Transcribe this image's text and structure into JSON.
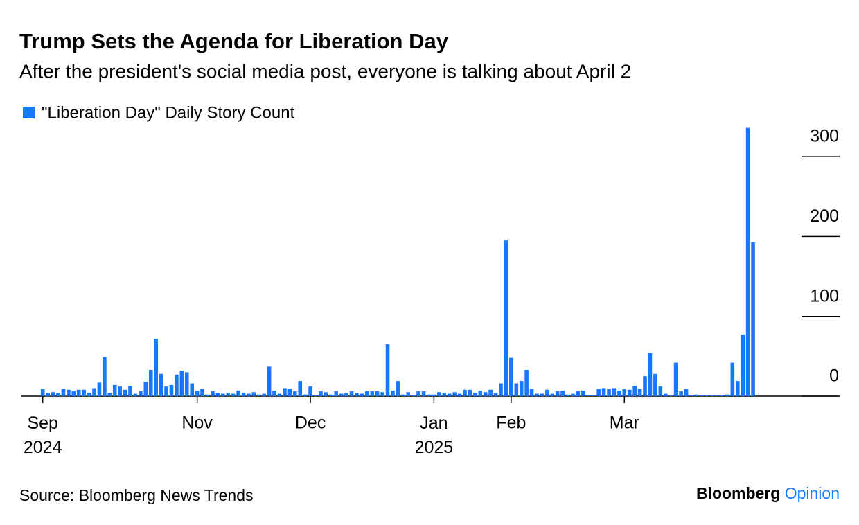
{
  "chart_data": {
    "type": "bar",
    "title": "Trump Sets the Agenda for Liberation Day",
    "subtitle": "After the president's social media post, everyone is talking about April 2",
    "source": "Source: Bloomberg News Trends",
    "brand": "Bloomberg",
    "brand_section": "Opinion",
    "series": [
      {
        "name": "\"Liberation Day\" Daily Story Count",
        "color": "#1677ff",
        "values": [
          9,
          4,
          5,
          4,
          9,
          8,
          6,
          8,
          8,
          4,
          10,
          17,
          49,
          4,
          14,
          12,
          8,
          13,
          3,
          6,
          18,
          33,
          72,
          28,
          12,
          14,
          27,
          32,
          30,
          16,
          7,
          9,
          2,
          6,
          4,
          3,
          4,
          3,
          7,
          4,
          3,
          5,
          2,
          3,
          37,
          7,
          3,
          10,
          9,
          6,
          19,
          2,
          12,
          1,
          6,
          5,
          2,
          6,
          3,
          4,
          6,
          4,
          3,
          6,
          6,
          6,
          5,
          65,
          7,
          19,
          2,
          5,
          1,
          6,
          6,
          2,
          2,
          5,
          4,
          3,
          5,
          3,
          8,
          8,
          4,
          7,
          5,
          8,
          4,
          16,
          195,
          48,
          16,
          19,
          33,
          9,
          3,
          3,
          8,
          3,
          6,
          7,
          2,
          3,
          6,
          7,
          1,
          1,
          9,
          10,
          9,
          10,
          7,
          9,
          8,
          13,
          9,
          25,
          54,
          28,
          12,
          3,
          1,
          42,
          6,
          9,
          1,
          2,
          1,
          1,
          1,
          1,
          1,
          2,
          42,
          19,
          77,
          336,
          193
        ]
      }
    ],
    "categories": [
      "Sep 2024",
      null,
      null,
      null,
      null,
      null,
      null,
      null,
      null,
      null,
      null,
      null,
      null,
      null,
      null,
      null,
      null,
      null,
      null,
      null,
      null,
      null,
      null,
      null,
      null,
      null,
      null,
      null,
      null,
      null,
      "Nov",
      null,
      null,
      null,
      null,
      null,
      null,
      null,
      null,
      null,
      null,
      null,
      null,
      null,
      null,
      null,
      null,
      null,
      null,
      null,
      null,
      null,
      "Dec",
      null,
      null,
      null,
      null,
      null,
      null,
      null,
      null,
      null,
      null,
      null,
      null,
      null,
      null,
      null,
      null,
      null,
      null,
      null,
      null,
      null,
      null,
      null,
      "Jan 2025",
      null,
      null,
      null,
      null,
      null,
      null,
      null,
      null,
      null,
      null,
      null,
      null,
      null,
      null,
      "Feb",
      null,
      null,
      null,
      null,
      null,
      null,
      null,
      null,
      null,
      null,
      null,
      null,
      null,
      null,
      null,
      null,
      null,
      null,
      null,
      null,
      null,
      "Mar",
      null,
      null,
      null,
      null,
      null,
      null,
      null,
      null,
      null,
      null,
      null,
      null,
      null,
      null,
      null,
      null,
      null,
      null,
      null,
      null,
      null,
      null,
      null,
      null,
      null
    ],
    "ylim": [
      0,
      340
    ],
    "yticks": [
      0,
      100,
      200,
      300
    ]
  }
}
